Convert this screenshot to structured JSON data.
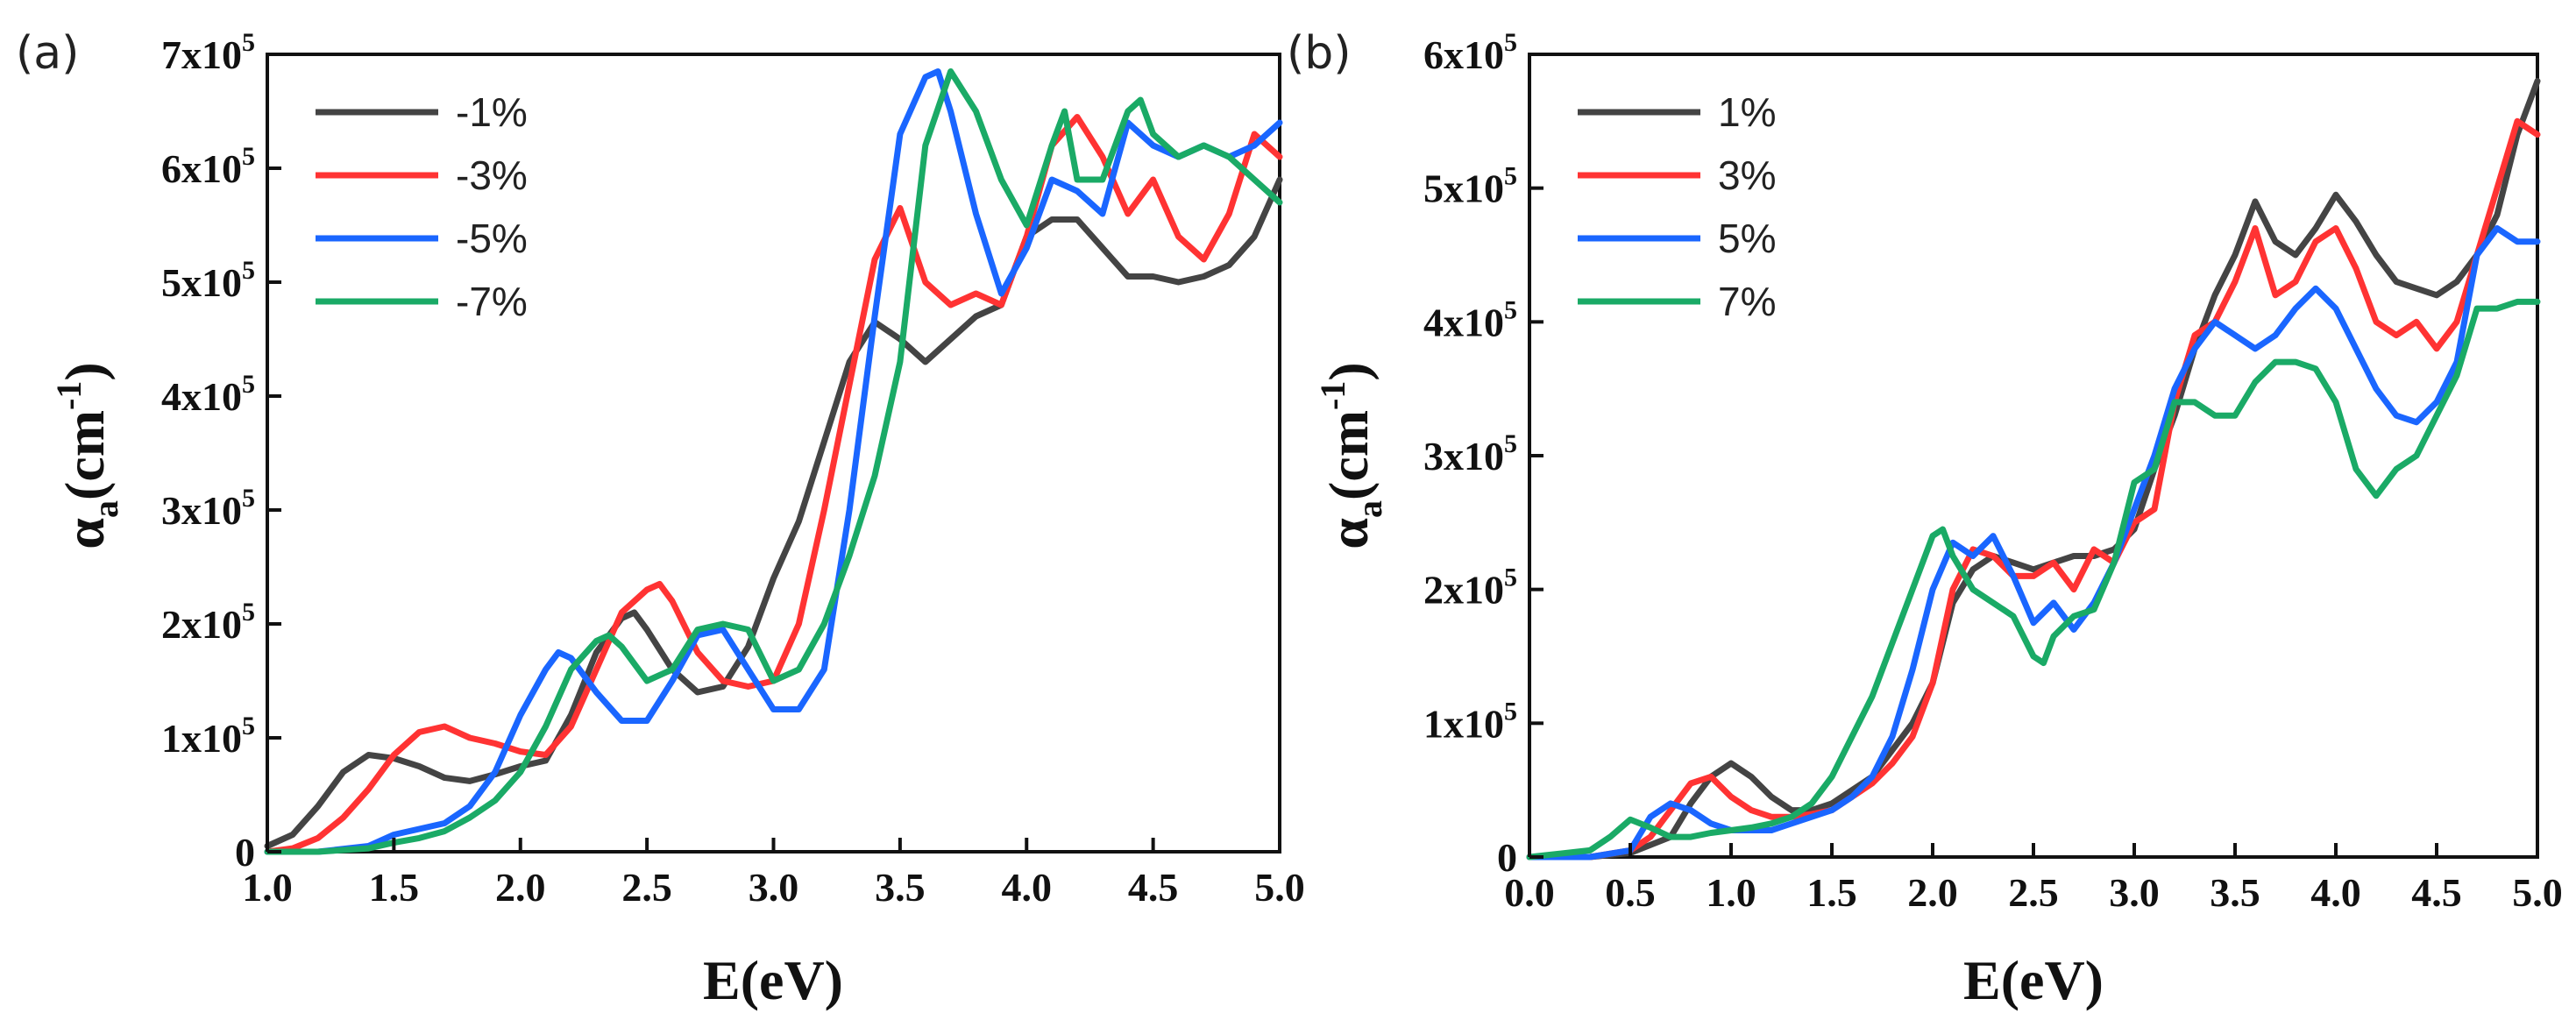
{
  "chart_data": [
    {
      "type": "line",
      "panel_label": "(a)",
      "xlabel": "E(eV)",
      "ylabel": "α",
      "ylabel_sub": "a",
      "ylabel_unit": "(cm",
      "ylabel_unit_exp": "-1",
      "ylabel_unit_close": ")",
      "xlim": [
        1.0,
        5.0
      ],
      "ylim": [
        0,
        700000
      ],
      "xticks": [
        {
          "value": 1.0,
          "label": "1.0"
        },
        {
          "value": 1.5,
          "label": "1.5"
        },
        {
          "value": 2.0,
          "label": "2.0"
        },
        {
          "value": 2.5,
          "label": "2.5"
        },
        {
          "value": 3.0,
          "label": "3.0"
        },
        {
          "value": 3.5,
          "label": "3.5"
        },
        {
          "value": 4.0,
          "label": "4.0"
        },
        {
          "value": 4.5,
          "label": "4.5"
        },
        {
          "value": 5.0,
          "label": "5.0"
        }
      ],
      "yticks": [
        {
          "value": 0,
          "label": "0",
          "exp": ""
        },
        {
          "value": 100000,
          "label": "1x10",
          "exp": "5"
        },
        {
          "value": 200000,
          "label": "2x10",
          "exp": "5"
        },
        {
          "value": 300000,
          "label": "3x10",
          "exp": "5"
        },
        {
          "value": 400000,
          "label": "4x10",
          "exp": "5"
        },
        {
          "value": 500000,
          "label": "5x10",
          "exp": "5"
        },
        {
          "value": 600000,
          "label": "6x10",
          "exp": "5"
        },
        {
          "value": 700000,
          "label": "7x10",
          "exp": "5"
        }
      ],
      "legend_position": "top-left",
      "series": [
        {
          "name": "-1%",
          "color": "#444444",
          "x": [
            1.0,
            1.1,
            1.2,
            1.3,
            1.4,
            1.5,
            1.6,
            1.7,
            1.8,
            1.9,
            2.0,
            2.1,
            2.2,
            2.3,
            2.4,
            2.45,
            2.5,
            2.6,
            2.7,
            2.8,
            2.9,
            3.0,
            3.1,
            3.2,
            3.3,
            3.4,
            3.5,
            3.6,
            3.7,
            3.8,
            3.9,
            4.0,
            4.1,
            4.2,
            4.3,
            4.4,
            4.5,
            4.6,
            4.7,
            4.8,
            4.9,
            5.0
          ],
          "y": [
            5000,
            15000,
            40000,
            70000,
            85000,
            82000,
            75000,
            65000,
            62000,
            68000,
            75000,
            80000,
            120000,
            175000,
            205000,
            210000,
            195000,
            160000,
            140000,
            145000,
            180000,
            240000,
            290000,
            360000,
            430000,
            465000,
            450000,
            430000,
            450000,
            470000,
            480000,
            540000,
            555000,
            555000,
            530000,
            505000,
            505000,
            500000,
            505000,
            515000,
            540000,
            590000
          ]
        },
        {
          "name": "-3%",
          "color": "#ff3333",
          "x": [
            1.0,
            1.1,
            1.2,
            1.3,
            1.4,
            1.5,
            1.6,
            1.7,
            1.8,
            1.9,
            2.0,
            2.1,
            2.2,
            2.3,
            2.4,
            2.5,
            2.55,
            2.6,
            2.7,
            2.8,
            2.9,
            3.0,
            3.1,
            3.2,
            3.3,
            3.4,
            3.5,
            3.6,
            3.7,
            3.8,
            3.9,
            4.0,
            4.1,
            4.2,
            4.3,
            4.4,
            4.5,
            4.6,
            4.7,
            4.8,
            4.9,
            5.0
          ],
          "y": [
            0,
            3000,
            12000,
            30000,
            55000,
            85000,
            105000,
            110000,
            100000,
            95000,
            88000,
            85000,
            110000,
            160000,
            210000,
            230000,
            235000,
            220000,
            175000,
            150000,
            145000,
            150000,
            200000,
            300000,
            410000,
            520000,
            565000,
            500000,
            480000,
            490000,
            480000,
            540000,
            620000,
            645000,
            610000,
            560000,
            590000,
            540000,
            520000,
            560000,
            630000,
            610000
          ]
        },
        {
          "name": "-5%",
          "color": "#1a66ff",
          "x": [
            1.0,
            1.2,
            1.4,
            1.5,
            1.6,
            1.7,
            1.8,
            1.9,
            2.0,
            2.1,
            2.15,
            2.2,
            2.3,
            2.4,
            2.5,
            2.6,
            2.7,
            2.8,
            2.9,
            3.0,
            3.1,
            3.2,
            3.3,
            3.4,
            3.5,
            3.6,
            3.65,
            3.7,
            3.8,
            3.9,
            4.0,
            4.1,
            4.2,
            4.3,
            4.4,
            4.5,
            4.6,
            4.7,
            4.8,
            4.9,
            5.0
          ],
          "y": [
            0,
            0,
            5000,
            15000,
            20000,
            25000,
            40000,
            70000,
            120000,
            160000,
            175000,
            170000,
            140000,
            115000,
            115000,
            150000,
            190000,
            195000,
            160000,
            125000,
            125000,
            160000,
            300000,
            470000,
            630000,
            680000,
            685000,
            650000,
            560000,
            490000,
            530000,
            590000,
            580000,
            560000,
            640000,
            620000,
            610000,
            620000,
            610000,
            620000,
            640000
          ]
        },
        {
          "name": "-7%",
          "color": "#1aaa66",
          "x": [
            1.0,
            1.2,
            1.4,
            1.5,
            1.6,
            1.7,
            1.8,
            1.9,
            2.0,
            2.1,
            2.2,
            2.3,
            2.35,
            2.4,
            2.5,
            2.6,
            2.7,
            2.8,
            2.9,
            3.0,
            3.1,
            3.2,
            3.3,
            3.4,
            3.5,
            3.6,
            3.7,
            3.8,
            3.9,
            4.0,
            4.1,
            4.15,
            4.2,
            4.3,
            4.4,
            4.45,
            4.5,
            4.6,
            4.7,
            4.8,
            4.9,
            5.0
          ],
          "y": [
            0,
            0,
            3000,
            8000,
            12000,
            18000,
            30000,
            45000,
            70000,
            110000,
            160000,
            185000,
            190000,
            180000,
            150000,
            160000,
            195000,
            200000,
            195000,
            150000,
            160000,
            200000,
            260000,
            330000,
            430000,
            620000,
            685000,
            650000,
            590000,
            550000,
            620000,
            650000,
            590000,
            590000,
            650000,
            660000,
            630000,
            610000,
            620000,
            610000,
            590000,
            570000
          ]
        }
      ]
    },
    {
      "type": "line",
      "panel_label": "(b)",
      "xlabel": "E(eV)",
      "ylabel": "α",
      "ylabel_sub": "a",
      "ylabel_unit": "(cm",
      "ylabel_unit_exp": "-1",
      "ylabel_unit_close": ")",
      "xlim": [
        0.0,
        5.0
      ],
      "ylim": [
        0,
        600000
      ],
      "xticks": [
        {
          "value": 0.0,
          "label": "0.0"
        },
        {
          "value": 0.5,
          "label": "0.5"
        },
        {
          "value": 1.0,
          "label": "1.0"
        },
        {
          "value": 1.5,
          "label": "1.5"
        },
        {
          "value": 2.0,
          "label": "2.0"
        },
        {
          "value": 2.5,
          "label": "2.5"
        },
        {
          "value": 3.0,
          "label": "3.0"
        },
        {
          "value": 3.5,
          "label": "3.5"
        },
        {
          "value": 4.0,
          "label": "4.0"
        },
        {
          "value": 4.5,
          "label": "4.5"
        },
        {
          "value": 5.0,
          "label": "5.0"
        }
      ],
      "yticks": [
        {
          "value": 0,
          "label": "0",
          "exp": ""
        },
        {
          "value": 100000,
          "label": "1x10",
          "exp": "5"
        },
        {
          "value": 200000,
          "label": "2x10",
          "exp": "5"
        },
        {
          "value": 300000,
          "label": "3x10",
          "exp": "5"
        },
        {
          "value": 400000,
          "label": "4x10",
          "exp": "5"
        },
        {
          "value": 500000,
          "label": "5x10",
          "exp": "5"
        },
        {
          "value": 600000,
          "label": "6x10",
          "exp": "5"
        }
      ],
      "legend_position": "top-left",
      "series": [
        {
          "name": "1%",
          "color": "#444444",
          "x": [
            0.0,
            0.3,
            0.5,
            0.7,
            0.8,
            0.9,
            1.0,
            1.1,
            1.2,
            1.3,
            1.4,
            1.5,
            1.6,
            1.7,
            1.8,
            1.9,
            2.0,
            2.1,
            2.2,
            2.3,
            2.4,
            2.5,
            2.6,
            2.7,
            2.8,
            2.9,
            3.0,
            3.1,
            3.2,
            3.3,
            3.4,
            3.5,
            3.6,
            3.7,
            3.8,
            3.9,
            4.0,
            4.1,
            4.2,
            4.3,
            4.4,
            4.5,
            4.6,
            4.7,
            4.8,
            4.9,
            5.0
          ],
          "y": [
            0,
            0,
            3000,
            15000,
            40000,
            60000,
            70000,
            60000,
            45000,
            35000,
            35000,
            40000,
            50000,
            60000,
            80000,
            100000,
            130000,
            190000,
            215000,
            225000,
            220000,
            215000,
            220000,
            225000,
            225000,
            230000,
            245000,
            290000,
            330000,
            380000,
            420000,
            450000,
            490000,
            460000,
            450000,
            470000,
            495000,
            475000,
            450000,
            430000,
            425000,
            420000,
            430000,
            450000,
            480000,
            540000,
            580000
          ]
        },
        {
          "name": "3%",
          "color": "#ff3333",
          "x": [
            0.0,
            0.3,
            0.5,
            0.6,
            0.7,
            0.8,
            0.9,
            1.0,
            1.1,
            1.2,
            1.3,
            1.4,
            1.5,
            1.6,
            1.7,
            1.8,
            1.9,
            2.0,
            2.1,
            2.2,
            2.3,
            2.4,
            2.5,
            2.6,
            2.7,
            2.8,
            2.9,
            3.0,
            3.1,
            3.2,
            3.3,
            3.4,
            3.5,
            3.6,
            3.7,
            3.8,
            3.9,
            4.0,
            4.1,
            4.2,
            4.3,
            4.4,
            4.5,
            4.6,
            4.7,
            4.8,
            4.9,
            5.0
          ],
          "y": [
            0,
            0,
            5000,
            15000,
            35000,
            55000,
            60000,
            45000,
            35000,
            30000,
            30000,
            32000,
            35000,
            45000,
            55000,
            70000,
            90000,
            130000,
            200000,
            230000,
            225000,
            210000,
            210000,
            220000,
            200000,
            230000,
            220000,
            250000,
            260000,
            340000,
            390000,
            400000,
            430000,
            470000,
            420000,
            430000,
            460000,
            470000,
            440000,
            400000,
            390000,
            400000,
            380000,
            400000,
            450000,
            500000,
            550000,
            540000
          ]
        },
        {
          "name": "5%",
          "color": "#1a66ff",
          "x": [
            0.0,
            0.3,
            0.5,
            0.6,
            0.7,
            0.8,
            0.9,
            1.0,
            1.1,
            1.2,
            1.3,
            1.4,
            1.5,
            1.6,
            1.7,
            1.8,
            1.9,
            2.0,
            2.1,
            2.2,
            2.3,
            2.4,
            2.5,
            2.6,
            2.7,
            2.8,
            2.9,
            3.0,
            3.1,
            3.2,
            3.3,
            3.4,
            3.5,
            3.6,
            3.7,
            3.8,
            3.9,
            4.0,
            4.1,
            4.2,
            4.3,
            4.4,
            4.5,
            4.6,
            4.7,
            4.8,
            4.9,
            5.0
          ],
          "y": [
            0,
            0,
            5000,
            30000,
            40000,
            35000,
            25000,
            20000,
            20000,
            20000,
            25000,
            30000,
            35000,
            45000,
            60000,
            90000,
            140000,
            200000,
            235000,
            225000,
            240000,
            210000,
            175000,
            190000,
            170000,
            190000,
            220000,
            260000,
            300000,
            350000,
            380000,
            400000,
            390000,
            380000,
            390000,
            410000,
            425000,
            410000,
            380000,
            350000,
            330000,
            325000,
            340000,
            370000,
            450000,
            470000,
            460000,
            460000
          ]
        },
        {
          "name": "7%",
          "color": "#1aaa66",
          "x": [
            0.0,
            0.3,
            0.4,
            0.5,
            0.6,
            0.7,
            0.8,
            0.9,
            1.0,
            1.1,
            1.2,
            1.3,
            1.4,
            1.5,
            1.6,
            1.7,
            1.8,
            1.9,
            2.0,
            2.05,
            2.1,
            2.2,
            2.3,
            2.4,
            2.5,
            2.55,
            2.6,
            2.7,
            2.8,
            2.9,
            3.0,
            3.1,
            3.2,
            3.3,
            3.4,
            3.5,
            3.6,
            3.7,
            3.8,
            3.9,
            4.0,
            4.1,
            4.2,
            4.3,
            4.4,
            4.5,
            4.6,
            4.7,
            4.8,
            4.9,
            5.0
          ],
          "y": [
            0,
            5000,
            15000,
            28000,
            22000,
            15000,
            15000,
            18000,
            20000,
            22000,
            25000,
            30000,
            40000,
            60000,
            90000,
            120000,
            160000,
            200000,
            240000,
            245000,
            225000,
            200000,
            190000,
            180000,
            150000,
            145000,
            165000,
            180000,
            185000,
            220000,
            280000,
            290000,
            340000,
            340000,
            330000,
            330000,
            355000,
            370000,
            370000,
            365000,
            340000,
            290000,
            270000,
            290000,
            300000,
            330000,
            360000,
            410000,
            410000,
            415000,
            415000
          ]
        }
      ]
    }
  ]
}
